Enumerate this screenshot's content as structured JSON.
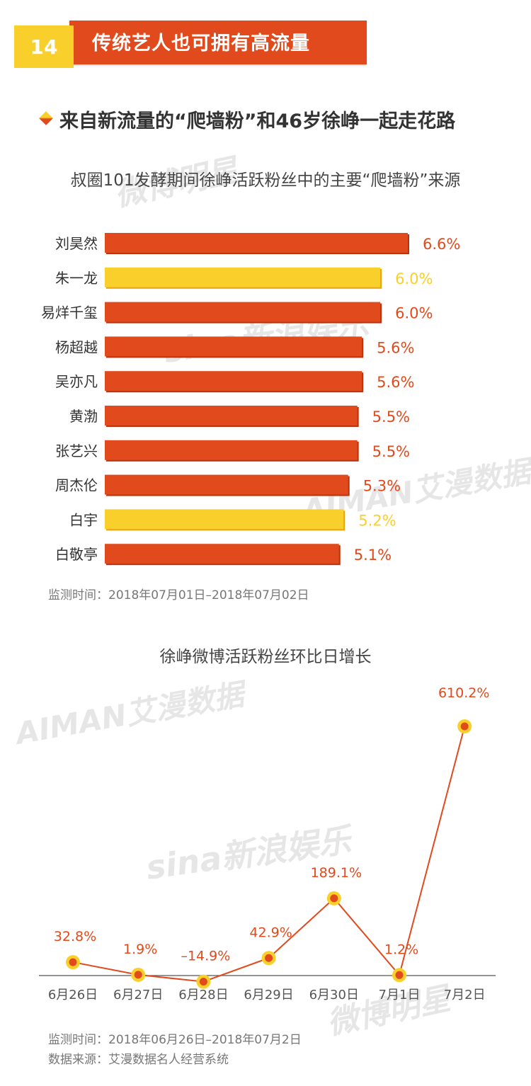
{
  "header": {
    "number": "14",
    "title": "传统艺人也可拥有高流量"
  },
  "subtitle": "来自新流量的“爬墙粉”和46岁徐峥一起走花路",
  "watermarks": {
    "weibo": "微博明星",
    "sina": "sina新浪娱乐",
    "aiman": "AIMAN艾漫数据"
  },
  "colors": {
    "red": "#e04a1c",
    "yellow": "#f9cf2c",
    "text_dark": "#333333",
    "text_gray": "#777777"
  },
  "chart_data": [
    {
      "type": "bar",
      "orientation": "horizontal",
      "title": "叔圈101发酵期间徐峥活跃粉丝中的主要“爬墙粉”来源",
      "categories": [
        "刘昊然",
        "朱一龙",
        "易烊千玺",
        "杨超越",
        "吴亦凡",
        "黄渤",
        "张艺兴",
        "周杰伦",
        "白宇",
        "白敬亭"
      ],
      "values": [
        6.6,
        6.0,
        6.0,
        5.6,
        5.6,
        5.5,
        5.5,
        5.3,
        5.2,
        5.1
      ],
      "labels": [
        "6.6%",
        "6.0%",
        "6.0%",
        "5.6%",
        "5.6%",
        "5.5%",
        "5.5%",
        "5.3%",
        "5.2%",
        "5.1%"
      ],
      "bar_colors": [
        "red",
        "yellow",
        "red",
        "red",
        "red",
        "red",
        "red",
        "red",
        "yellow",
        "red"
      ],
      "note": "监测时间：2018年07月01日–2018年07月02日"
    },
    {
      "type": "line",
      "title": "徐峥微博活跃粉丝环比日增长",
      "x": [
        "6月26日",
        "6月27日",
        "6月28日",
        "6月29日",
        "6月30日",
        "7月1日",
        "7月2日"
      ],
      "values": [
        32.8,
        1.9,
        -14.9,
        42.9,
        189.1,
        1.2,
        610.2
      ],
      "labels": [
        "32.8%",
        "1.9%",
        "–14.9%",
        "42.9%",
        "189.1%",
        "1.2%",
        "610.2%"
      ],
      "note1": "监测时间：2018年06月26日–2018年07月2日",
      "note2": "数据来源：艾漫数据名人经营系统"
    }
  ]
}
